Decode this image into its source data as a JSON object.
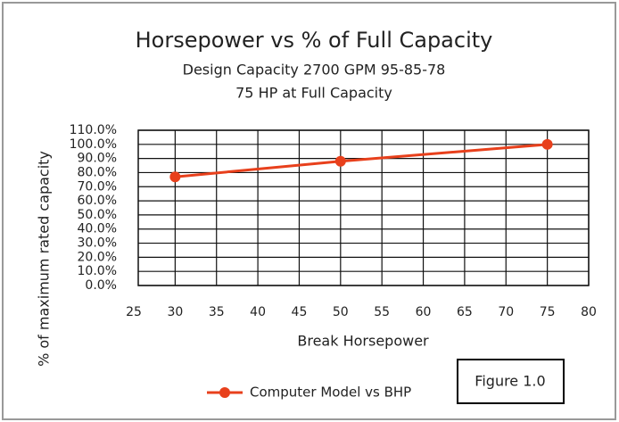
{
  "chart_data": {
    "type": "line",
    "title": "Horsepower vs % of Full Capacity",
    "subtitle": [
      "Design Capacity 2700 GPM 95-85-78",
      "75 HP at Full Capacity"
    ],
    "x_label": "Break Horsepower",
    "y_label": "% of maximum rated capacity",
    "annotation": "Figure 1.0",
    "x": [
      30,
      50,
      75
    ],
    "series": [
      {
        "name": "Computer Model vs BHP",
        "color": "#e8401c",
        "values": [
          77,
          88,
          100
        ]
      }
    ],
    "xlim": [
      25,
      80
    ],
    "xticks": [
      25,
      30,
      35,
      40,
      45,
      50,
      55,
      60,
      65,
      70,
      75,
      80
    ],
    "ylim": [
      0,
      110
    ],
    "yticks": [
      {
        "value": 0,
        "label": "0.0%"
      },
      {
        "value": 10,
        "label": "10.0%"
      },
      {
        "value": 20,
        "label": "20.0%"
      },
      {
        "value": 30,
        "label": "30.0%"
      },
      {
        "value": 40,
        "label": "40.0%"
      },
      {
        "value": 50,
        "label": "50.0%"
      },
      {
        "value": 60,
        "label": "60.0%"
      },
      {
        "value": 70,
        "label": "70.0%"
      },
      {
        "value": 80,
        "label": "80.0%"
      },
      {
        "value": 90,
        "label": "90.0%"
      },
      {
        "value": 100,
        "label": "100.0%"
      },
      {
        "value": 110,
        "label": "110.0%"
      }
    ],
    "grid": true,
    "legend": "bottom"
  }
}
